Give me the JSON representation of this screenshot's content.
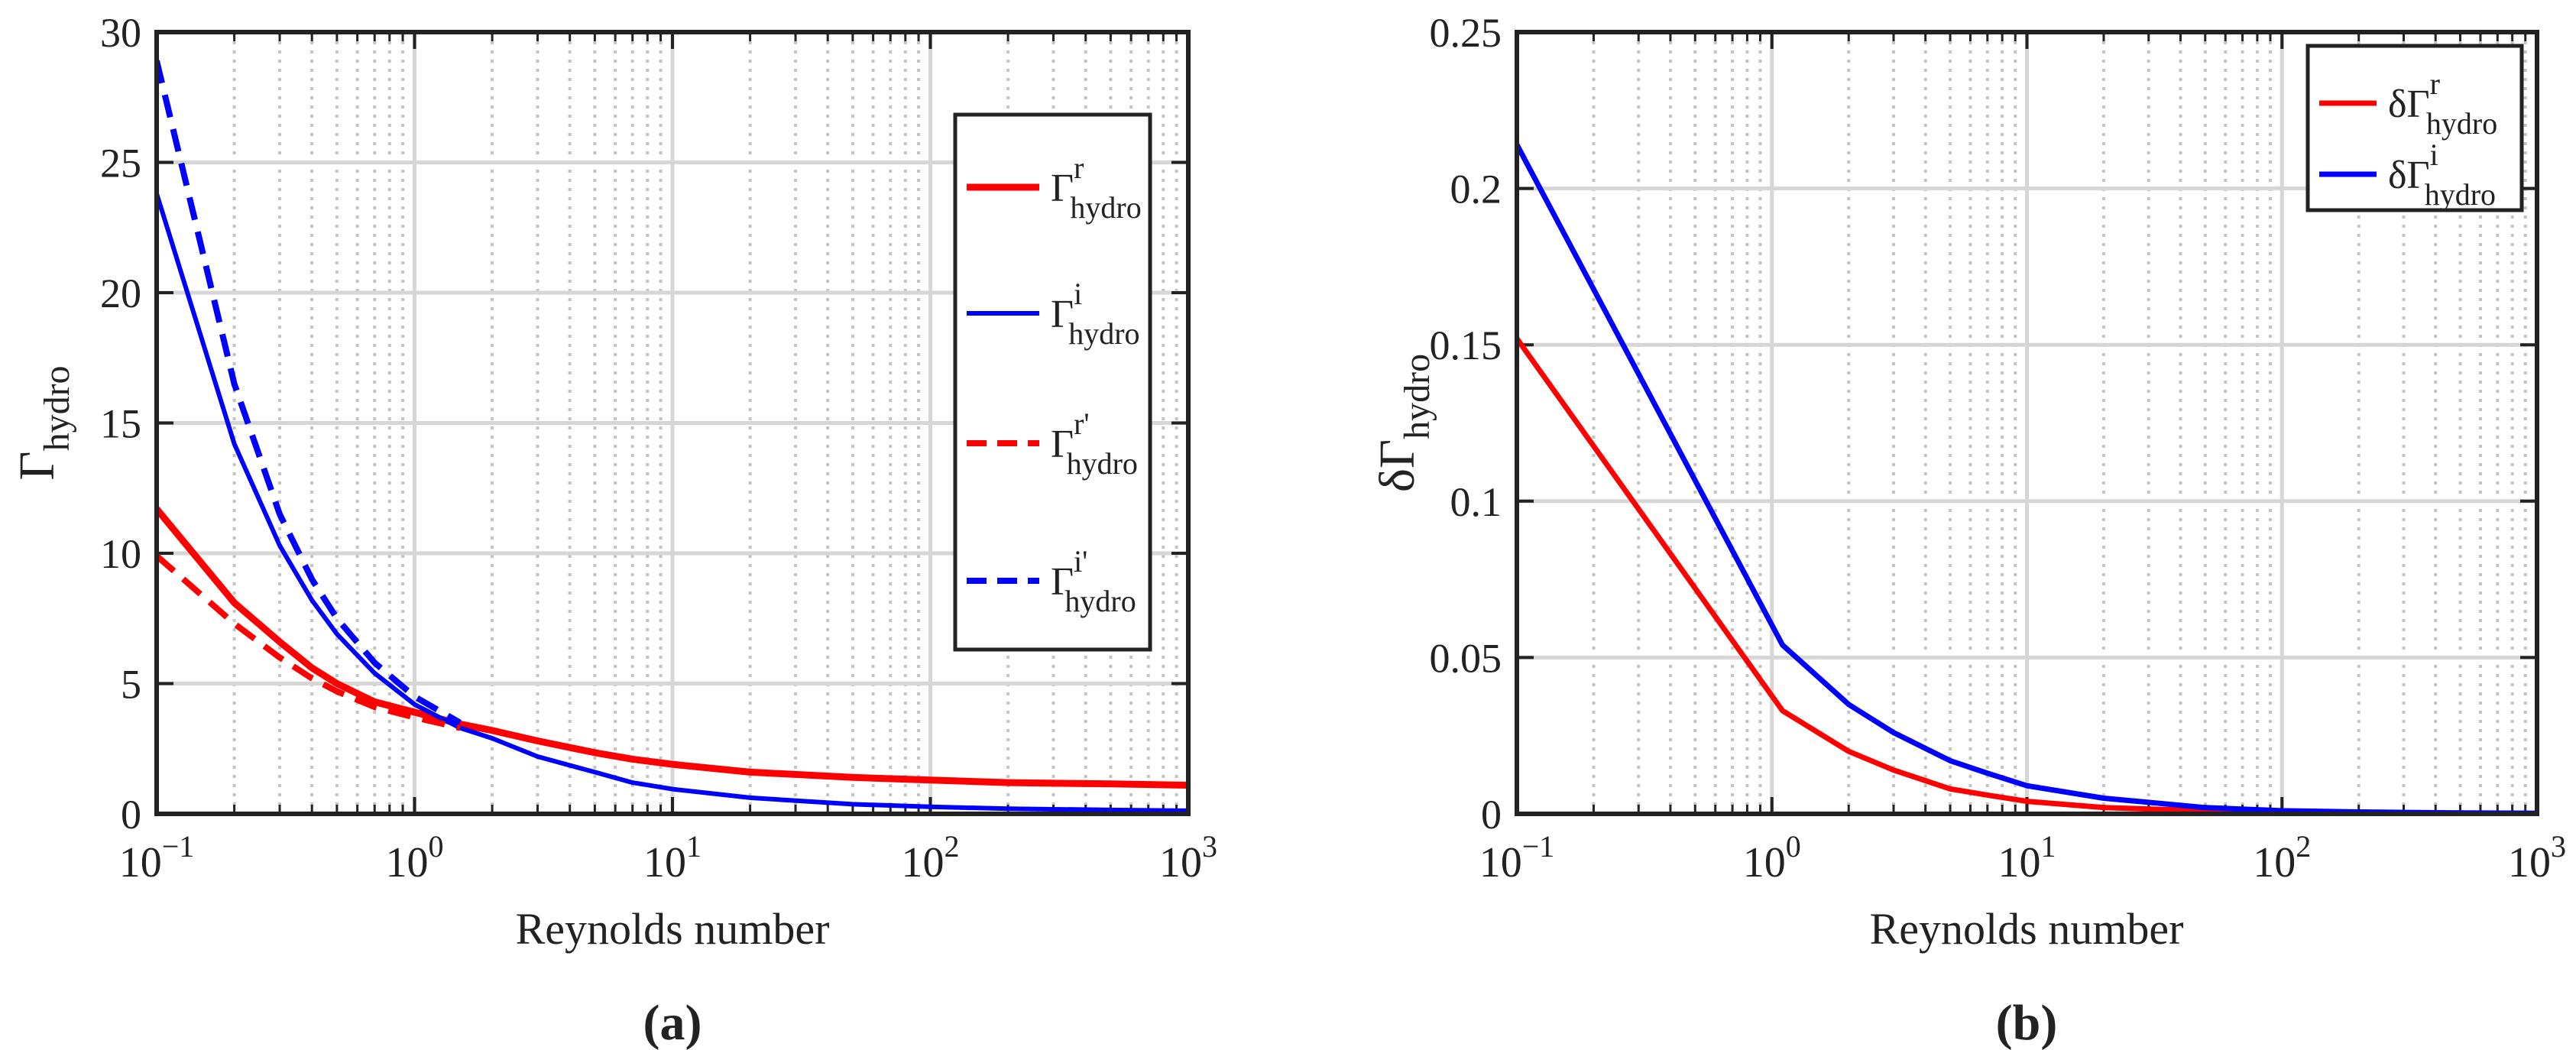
{
  "chart_data": [
    {
      "type": "line",
      "panel_label": "(a)",
      "xlabel": "Reynolds number",
      "ylabel": {
        "main": "Γ",
        "sub": "hydro"
      },
      "xscale": "log",
      "xlim": [
        0.1,
        1000
      ],
      "ylim": [
        0,
        30
      ],
      "yticks": [
        0,
        5,
        10,
        15,
        20,
        25,
        30
      ],
      "xticks": [
        {
          "base": "10",
          "exp": "−1",
          "value": 0.1
        },
        {
          "base": "10",
          "exp": "0",
          "value": 1
        },
        {
          "base": "10",
          "exp": "1",
          "value": 10
        },
        {
          "base": "10",
          "exp": "2",
          "value": 100
        },
        {
          "base": "10",
          "exp": "3",
          "value": 1000
        }
      ],
      "grid": true,
      "legend_position": "right",
      "series": [
        {
          "name": "Γ",
          "sup": "r",
          "sub": "hydro",
          "color": "#ff0000",
          "dash": "solid",
          "width": 9,
          "x": [
            0.1,
            0.2,
            0.3,
            0.4,
            0.5,
            0.7,
            1,
            1.5,
            2,
            3,
            5,
            7,
            10,
            20,
            50,
            100,
            200,
            500,
            1000
          ],
          "y": [
            11.7,
            8.1,
            6.6,
            5.6,
            5.0,
            4.3,
            3.9,
            3.45,
            3.2,
            2.8,
            2.35,
            2.1,
            1.9,
            1.6,
            1.4,
            1.3,
            1.2,
            1.15,
            1.1
          ]
        },
        {
          "name": "Γ",
          "sup": "i",
          "sub": "hydro",
          "color": "#0000ff",
          "dash": "solid",
          "width": 6,
          "x": [
            0.1,
            0.2,
            0.3,
            0.4,
            0.5,
            0.7,
            1,
            1.5,
            2,
            3,
            5,
            7,
            10,
            20,
            50,
            100,
            200,
            500,
            1000
          ],
          "y": [
            23.8,
            14.2,
            10.3,
            8.2,
            6.9,
            5.4,
            4.2,
            3.3,
            2.9,
            2.2,
            1.6,
            1.2,
            0.95,
            0.62,
            0.37,
            0.27,
            0.2,
            0.15,
            0.12
          ]
        },
        {
          "name": "Γ",
          "sup": "r'",
          "sub": "hydro",
          "color": "#ff0000",
          "dash": "dashed",
          "width": 8,
          "x": [
            0.1,
            0.2,
            0.3,
            0.4,
            0.5,
            0.7,
            1,
            1.5
          ],
          "y": [
            9.9,
            7.3,
            6.0,
            5.2,
            4.7,
            4.1,
            3.7,
            3.3
          ]
        },
        {
          "name": "Γ",
          "sup": "i'",
          "sub": "hydro",
          "color": "#0000ff",
          "dash": "dashed",
          "width": 8,
          "x": [
            0.1,
            0.2,
            0.3,
            0.4,
            0.5,
            0.7,
            1,
            1.5
          ],
          "y": [
            28.9,
            16.5,
            11.5,
            9.0,
            7.5,
            5.8,
            4.5,
            3.5
          ]
        }
      ]
    },
    {
      "type": "line",
      "panel_label": "(b)",
      "xlabel": "Reynolds number",
      "ylabel": {
        "main": "δΓ",
        "sub": "hydro"
      },
      "xscale": "log",
      "xlim": [
        0.1,
        1000
      ],
      "ylim": [
        0,
        0.25
      ],
      "yticks": [
        "0",
        "0.05",
        "0.1",
        "0.15",
        "0.2",
        "0.25"
      ],
      "xticks": [
        {
          "base": "10",
          "exp": "−1",
          "value": 0.1
        },
        {
          "base": "10",
          "exp": "0",
          "value": 1
        },
        {
          "base": "10",
          "exp": "1",
          "value": 10
        },
        {
          "base": "10",
          "exp": "2",
          "value": 100
        },
        {
          "base": "10",
          "exp": "3",
          "value": 1000
        }
      ],
      "grid": true,
      "legend_position": "top-right",
      "series": [
        {
          "name": "δΓ",
          "sup": "r",
          "sub": "hydro",
          "color": "#ff0000",
          "dash": "solid",
          "width": 7,
          "x": [
            0.1,
            1.1,
            2,
            3,
            5,
            7,
            10,
            20,
            50,
            100,
            200,
            500,
            1000
          ],
          "y": [
            0.152,
            0.033,
            0.02,
            0.014,
            0.008,
            0.006,
            0.004,
            0.002,
            0.001,
            0.0005,
            0.0003,
            0.0001,
            0.0001
          ]
        },
        {
          "name": "δΓ",
          "sup": "i",
          "sub": "hydro",
          "color": "#0000ff",
          "dash": "solid",
          "width": 7,
          "x": [
            0.1,
            1.1,
            2,
            3,
            5,
            7,
            10,
            20,
            50,
            100,
            200,
            500,
            1000
          ],
          "y": [
            0.214,
            0.054,
            0.035,
            0.026,
            0.017,
            0.013,
            0.009,
            0.005,
            0.002,
            0.001,
            0.0006,
            0.0003,
            0.0002
          ]
        }
      ]
    }
  ]
}
